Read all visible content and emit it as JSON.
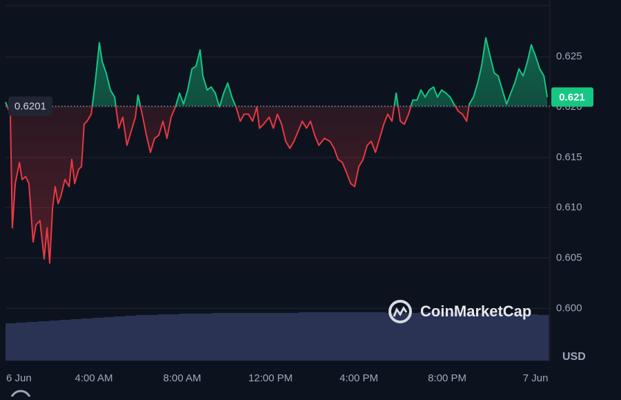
{
  "chart_data": {
    "type": "line",
    "reference_price": 0.6201,
    "current_price": 0.621,
    "y_axis_unit": "USD",
    "watermark": "CoinMarketCap",
    "xlim": [
      0,
      24.59
    ],
    "xticks": [
      {
        "value": 0,
        "label": "6 Jun"
      },
      {
        "value": 4,
        "label": "4:00 AM"
      },
      {
        "value": 8,
        "label": "8:00 AM"
      },
      {
        "value": 12,
        "label": "12:00 PM"
      },
      {
        "value": 16,
        "label": "4:00 PM"
      },
      {
        "value": 20,
        "label": "8:00 PM"
      },
      {
        "value": 24,
        "label": "7 Jun"
      }
    ],
    "ylim": [
      0.5948,
      0.6301
    ],
    "yticks": [
      {
        "value": 0.6,
        "label": "0.600"
      },
      0.605,
      {
        "value": 0.61,
        "label": "0.610"
      },
      0.615,
      {
        "value": 0.62,
        "label": "0.620"
      },
      0.625
    ],
    "grid": true,
    "up_color": "#16c784",
    "down_color": "#ea3943",
    "x": [
      0,
      0.22,
      0.31,
      0.44,
      0.63,
      0.75,
      0.91,
      1.06,
      1.25,
      1.38,
      1.56,
      1.75,
      1.88,
      2,
      2.13,
      2.25,
      2.38,
      2.5,
      2.69,
      2.88,
      3,
      3.13,
      3.31,
      3.44,
      3.56,
      3.69,
      3.88,
      4.06,
      4.25,
      4.38,
      4.56,
      4.75,
      4.94,
      5.13,
      5.31,
      5.5,
      5.69,
      5.88,
      6,
      6.19,
      6.38,
      6.56,
      6.75,
      6.94,
      7.13,
      7.31,
      7.5,
      7.69,
      7.88,
      8.06,
      8.25,
      8.44,
      8.63,
      8.81,
      8.94,
      9.13,
      9.31,
      9.5,
      9.69,
      9.88,
      10.06,
      10.25,
      10.44,
      10.63,
      10.81,
      11,
      11.19,
      11.38,
      11.5,
      11.69,
      11.94,
      12.13,
      12.31,
      12.5,
      12.69,
      12.88,
      13.06,
      13.25,
      13.44,
      13.63,
      13.81,
      14,
      14.19,
      14.44,
      14.69,
      14.88,
      15.06,
      15.25,
      15.44,
      15.63,
      15.81,
      16,
      16.19,
      16.38,
      16.56,
      16.75,
      16.94,
      17.13,
      17.31,
      17.5,
      17.69,
      17.88,
      18.06,
      18.25,
      18.44,
      18.63,
      18.81,
      19,
      19.19,
      19.38,
      19.56,
      19.75,
      19.94,
      20.13,
      20.31,
      20.5,
      20.69,
      20.88,
      21,
      21.19,
      21.38,
      21.56,
      21.75,
      21.94,
      22.13,
      22.31,
      22.5,
      22.69,
      22.88,
      23.06,
      23.25,
      23.44,
      23.63,
      23.81,
      24,
      24.19,
      24.38,
      24.53
    ],
    "values": [
      0.6205,
      0.6193,
      0.608,
      0.6124,
      0.6145,
      0.6128,
      0.6131,
      0.6124,
      0.6066,
      0.6083,
      0.6087,
      0.6049,
      0.608,
      0.6045,
      0.61,
      0.6121,
      0.6104,
      0.6111,
      0.6128,
      0.6121,
      0.6148,
      0.6124,
      0.6138,
      0.6141,
      0.6183,
      0.6186,
      0.6193,
      0.6224,
      0.6264,
      0.6245,
      0.6234,
      0.6217,
      0.621,
      0.6179,
      0.619,
      0.6162,
      0.6176,
      0.619,
      0.6212,
      0.6193,
      0.6172,
      0.6155,
      0.6169,
      0.6172,
      0.6186,
      0.6169,
      0.619,
      0.62,
      0.6214,
      0.6203,
      0.6217,
      0.6238,
      0.6241,
      0.6257,
      0.6231,
      0.6217,
      0.622,
      0.6214,
      0.62,
      0.6214,
      0.6224,
      0.621,
      0.62,
      0.6186,
      0.6193,
      0.6193,
      0.6186,
      0.62,
      0.6179,
      0.6183,
      0.619,
      0.6179,
      0.6193,
      0.6183,
      0.6166,
      0.6159,
      0.6166,
      0.6176,
      0.6186,
      0.6179,
      0.6186,
      0.6172,
      0.6162,
      0.6169,
      0.6166,
      0.6159,
      0.6148,
      0.6145,
      0.6135,
      0.6124,
      0.6121,
      0.6141,
      0.6148,
      0.6162,
      0.6166,
      0.6155,
      0.6169,
      0.6183,
      0.6193,
      0.6186,
      0.6214,
      0.6186,
      0.6183,
      0.6193,
      0.6207,
      0.6207,
      0.6217,
      0.621,
      0.6217,
      0.622,
      0.621,
      0.6217,
      0.6214,
      0.621,
      0.6203,
      0.6196,
      0.6193,
      0.6186,
      0.6203,
      0.621,
      0.6224,
      0.6241,
      0.6269,
      0.6251,
      0.6234,
      0.6231,
      0.6217,
      0.6203,
      0.6214,
      0.6224,
      0.6238,
      0.6231,
      0.6245,
      0.6262,
      0.6251,
      0.6238,
      0.6231,
      0.621
    ],
    "volume_color": "#2a3354",
    "volume_ylim": [
      0,
      100
    ],
    "volume_values": [
      54,
      55,
      56,
      57,
      58,
      59,
      60,
      61,
      62,
      63,
      64,
      65,
      66,
      66,
      67,
      67,
      68,
      68,
      68,
      69,
      69,
      69,
      69,
      69,
      69,
      69,
      69,
      70,
      70,
      70,
      70,
      70,
      70,
      70,
      70,
      69,
      69,
      69,
      70,
      71,
      70,
      70,
      69,
      69,
      69,
      69,
      68,
      68,
      67,
      66
    ]
  }
}
